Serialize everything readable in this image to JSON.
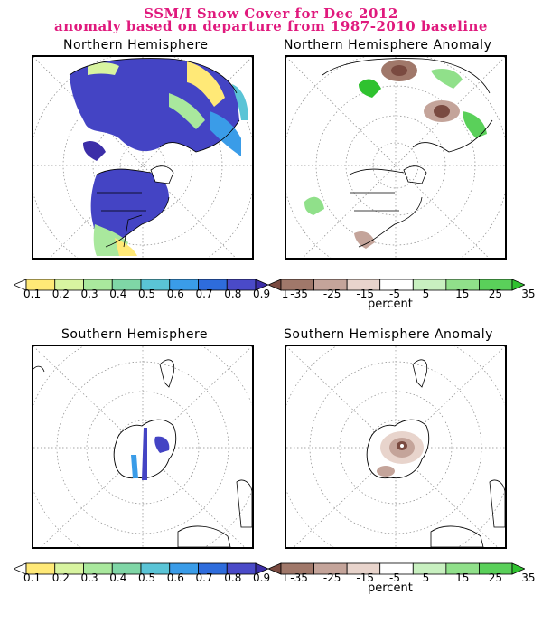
{
  "title": {
    "line1": "SSM/I Snow Cover for Dec 2012",
    "line2": "anomaly based on departure from 1987-2010 baseline"
  },
  "panels": {
    "nh": "Northern Hemisphere",
    "nh_anom": "Northern Hemisphere Anomaly",
    "sh": "Southern Hemisphere",
    "sh_anom": "Southern Hemisphere Anomaly"
  },
  "colorbars": {
    "cover": {
      "labels": [
        "0.1",
        "0.2",
        "0.3",
        "0.4",
        "0.5",
        "0.6",
        "0.7",
        "0.8",
        "0.9",
        "1"
      ],
      "colors": [
        "#ffffff",
        "#ffe977",
        "#d8f4a0",
        "#a9e89d",
        "#7fd6a6",
        "#5ac4d6",
        "#3a9ce8",
        "#2e6cdc",
        "#4a4ac8",
        "#3c2ea8"
      ]
    },
    "anomaly": {
      "labels": [
        "-35",
        "-25",
        "-15",
        "-5",
        "5",
        "15",
        "25",
        "35"
      ],
      "colors": [
        "#7a4a40",
        "#a0786a",
        "#c4a49a",
        "#e8d4cc",
        "#ffffff",
        "#c8f0c0",
        "#90e08a",
        "#5ad05a",
        "#2fc22f"
      ],
      "unit": "percent"
    }
  }
}
